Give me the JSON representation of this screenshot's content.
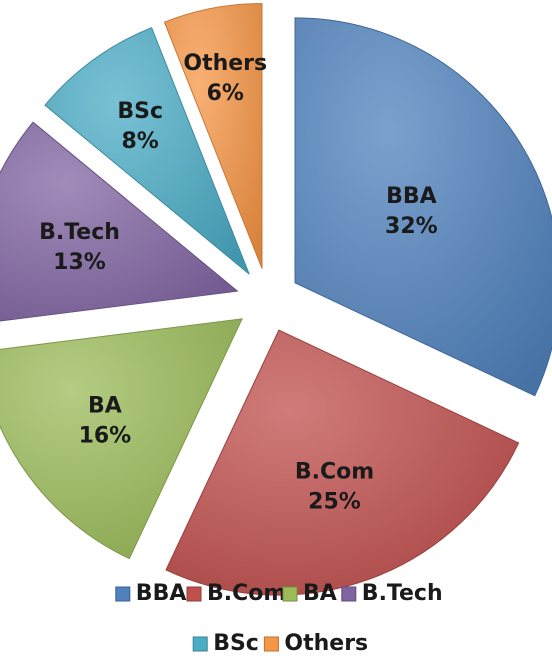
{
  "chart_data": {
    "type": "pie",
    "title": "",
    "exploded": true,
    "slices": [
      {
        "label": "BBA",
        "value": 32,
        "value_label": "32%",
        "color": "#4f81bd"
      },
      {
        "label": "B.Com",
        "value": 25,
        "value_label": "25%",
        "color": "#c0504d"
      },
      {
        "label": "BA",
        "value": 16,
        "value_label": "16%",
        "color": "#9bbb59"
      },
      {
        "label": "B.Tech",
        "value": 13,
        "value_label": "13%",
        "color": "#8064a2"
      },
      {
        "label": "BSc",
        "value": 8,
        "value_label": "8%",
        "color": "#4bacc6"
      },
      {
        "label": "Others",
        "value": 6,
        "value_label": "6%",
        "color": "#f79646"
      }
    ],
    "legend": {
      "placement": "bottom",
      "entries": [
        "BBA",
        "B.Com",
        "BA",
        "B.Tech",
        "BSc",
        "Others"
      ]
    }
  }
}
